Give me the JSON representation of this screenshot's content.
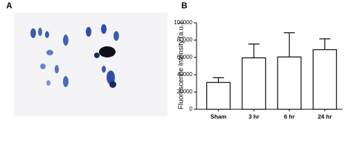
{
  "panel_a": {
    "label": "A"
  },
  "chart_data": {
    "type": "bar",
    "panel_label": "B",
    "y_label": "Fluorescence Intensity (a.u.)",
    "categories": [
      "Sham",
      "3 hr",
      "6 hr",
      "24 hr"
    ],
    "values": [
      31000,
      59500,
      60500,
      69000
    ],
    "errors": [
      5500,
      16000,
      28000,
      12500
    ],
    "color": "#ffffff",
    "ylim": [
      0,
      100000
    ],
    "yticks": [
      0,
      20000,
      40000,
      60000,
      80000,
      100000
    ],
    "grid": false
  }
}
